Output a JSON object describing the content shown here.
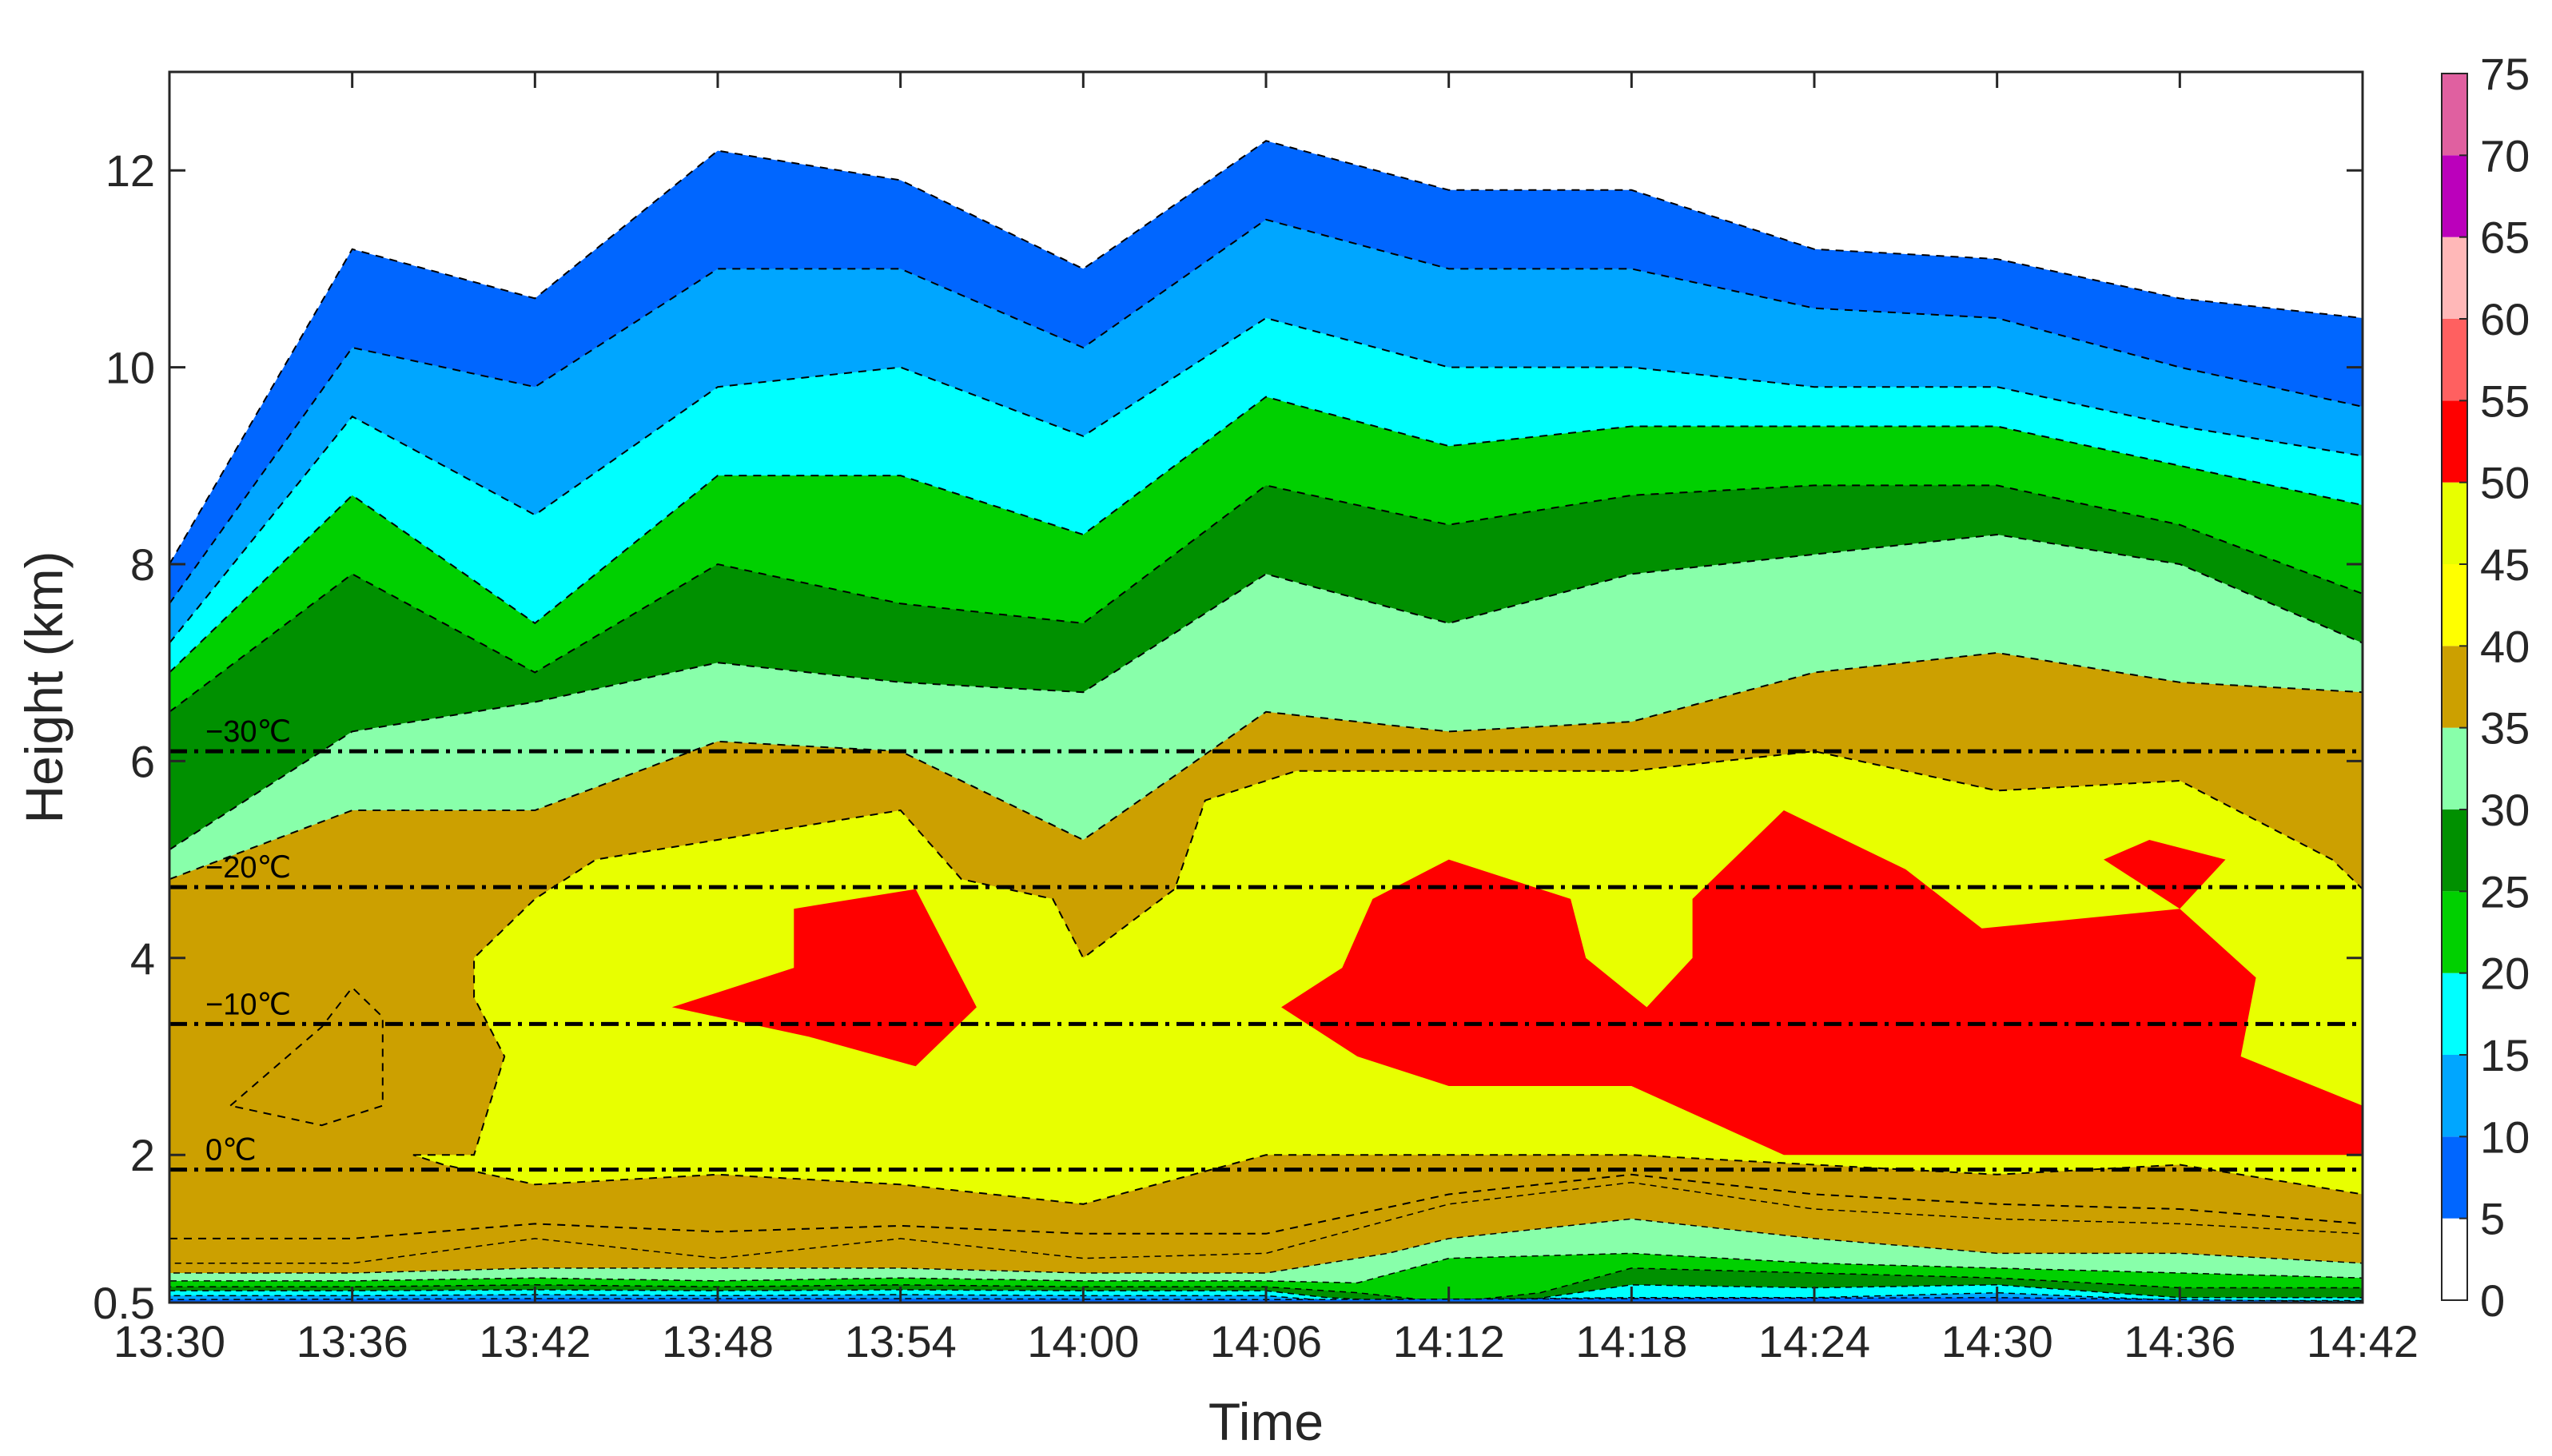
{
  "chart_data": {
    "type": "heatmap",
    "subtype": "filled contour",
    "title": "",
    "xlabel": "Time",
    "ylabel": "Height (km)",
    "x_ticks": [
      "13:30",
      "13:36",
      "13:42",
      "13:48",
      "13:54",
      "14:00",
      "14:06",
      "14:12",
      "14:18",
      "14:24",
      "14:30",
      "14:36",
      "14:42"
    ],
    "y_ticks": [
      "0.5",
      "2",
      "4",
      "6",
      "8",
      "10",
      "12"
    ],
    "xlim": [
      "13:30",
      "14:42"
    ],
    "ylim": [
      0.5,
      13
    ],
    "colorbar": {
      "ticks": [
        "0",
        "5",
        "10",
        "15",
        "20",
        "25",
        "30",
        "35",
        "40",
        "45",
        "50",
        "55",
        "60",
        "65",
        "70",
        "75"
      ],
      "levels": [
        0,
        5,
        10,
        15,
        20,
        25,
        30,
        35,
        40,
        45,
        50,
        55,
        60,
        65,
        70,
        75
      ],
      "colors": [
        "#ffffff",
        "#0066ff",
        "#00a6ff",
        "#00ffff",
        "#00d000",
        "#009000",
        "#88ffaa",
        "#cca000",
        "#ffff00",
        "#e8ff00",
        "#ff0000",
        "#ff6060",
        "#ffb8b8",
        "#bb00bb",
        "#e060a0"
      ]
    },
    "isotherms": [
      {
        "label": "0℃",
        "height_km": 1.85
      },
      {
        "label": "−10℃",
        "height_km": 3.33
      },
      {
        "label": "−20℃",
        "height_km": 4.72
      },
      {
        "label": "−30℃",
        "height_km": 6.1
      }
    ],
    "time_minutes": [
      0,
      6,
      12,
      18,
      24,
      30,
      36,
      42,
      48,
      54,
      60,
      66,
      72
    ],
    "echo_top_heights_km": {
      "5dBZ": [
        8.0,
        11.2,
        10.7,
        12.2,
        11.9,
        11.0,
        12.3,
        11.8,
        11.8,
        11.2,
        11.1,
        10.7,
        10.5
      ],
      "10dBZ": [
        7.6,
        10.2,
        9.8,
        11.0,
        11.0,
        10.2,
        11.5,
        11.0,
        11.0,
        10.6,
        10.5,
        10.0,
        9.6
      ],
      "15dBZ": [
        7.2,
        9.5,
        8.5,
        9.8,
        10.0,
        9.3,
        10.5,
        10.0,
        10.0,
        9.8,
        9.8,
        9.4,
        9.1
      ],
      "20dBZ": [
        6.9,
        8.7,
        7.4,
        8.9,
        8.9,
        8.3,
        9.7,
        9.2,
        9.4,
        9.4,
        9.4,
        9.0,
        8.6
      ],
      "25dBZ": [
        6.5,
        7.9,
        6.9,
        8.0,
        7.6,
        7.4,
        8.8,
        8.4,
        8.7,
        8.8,
        8.8,
        8.4,
        7.7
      ],
      "30dBZ": [
        5.1,
        6.3,
        6.6,
        7.0,
        6.8,
        6.7,
        7.9,
        7.4,
        7.9,
        8.1,
        8.3,
        8.0,
        7.2
      ],
      "35dBZ": [
        4.8,
        5.5,
        5.5,
        6.2,
        6.1,
        5.2,
        6.5,
        6.3,
        6.4,
        6.9,
        7.1,
        6.8,
        6.7
      ]
    }
  }
}
